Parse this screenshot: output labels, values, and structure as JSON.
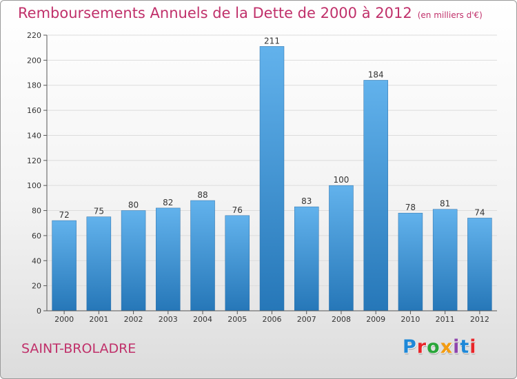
{
  "header": {
    "title": "Remboursements Annuels de la Dette de 2000 à 2012",
    "subtitle": "(en milliers d'€)"
  },
  "footer": {
    "city": "SAINT-BROLADRE",
    "brand": "Proxiti",
    "brand_colors": [
      "#1e88d8",
      "#e8262a",
      "#2aa63a",
      "#f39c12",
      "#8e44ad",
      "#1e88d8",
      "#e8262a"
    ]
  },
  "colors": {
    "title": "#c0306a",
    "bar_top": "#62b2ec",
    "bar_bottom": "#2677b8"
  },
  "chart_data": {
    "type": "bar",
    "title": "Remboursements Annuels de la Dette de 2000 à 2012",
    "subtitle": "(en milliers d'€)",
    "categories": [
      "2000",
      "2001",
      "2002",
      "2003",
      "2004",
      "2005",
      "2006",
      "2007",
      "2008",
      "2009",
      "2010",
      "2011",
      "2012"
    ],
    "values": [
      72,
      75,
      80,
      82,
      88,
      76,
      211,
      83,
      100,
      184,
      78,
      81,
      74
    ],
    "ylim": [
      0,
      220
    ],
    "yticks": [
      0,
      20,
      40,
      60,
      80,
      100,
      120,
      140,
      160,
      180,
      200,
      220
    ],
    "grid": true,
    "data_labels": true
  }
}
